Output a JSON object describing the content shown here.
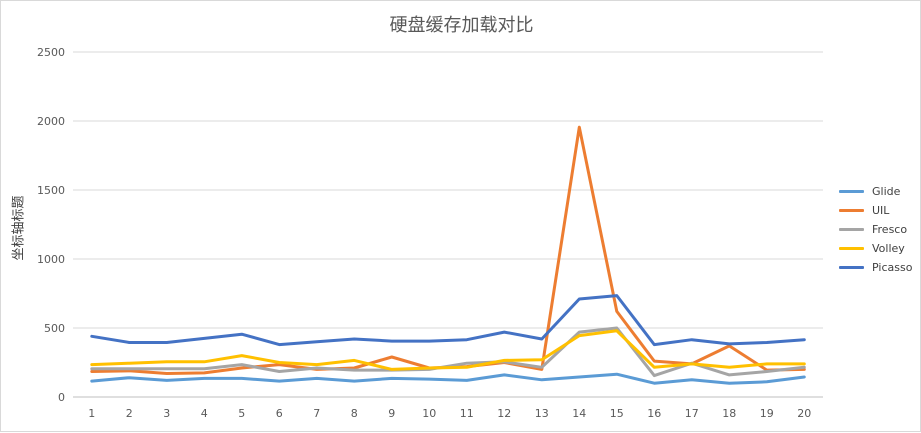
{
  "chart_data": {
    "type": "line",
    "title": "硬盘缓存加载对比",
    "ylabel": "坐标轴标题",
    "xlabel": "",
    "categories": [
      "1",
      "2",
      "3",
      "4",
      "5",
      "6",
      "7",
      "8",
      "9",
      "10",
      "11",
      "12",
      "13",
      "14",
      "15",
      "16",
      "17",
      "18",
      "19",
      "20"
    ],
    "ylim": [
      0,
      2500
    ],
    "yticks": [
      0,
      500,
      1000,
      1500,
      2000,
      2500
    ],
    "grid": true,
    "legend_position": "right",
    "series": [
      {
        "name": "Glide",
        "color": "#5b9bd5",
        "values": [
          115,
          140,
          120,
          135,
          135,
          115,
          135,
          115,
          135,
          130,
          120,
          160,
          125,
          145,
          165,
          100,
          125,
          100,
          110,
          145
        ]
      },
      {
        "name": "UIL",
        "color": "#ed7d31",
        "values": [
          185,
          190,
          170,
          175,
          210,
          235,
          200,
          210,
          290,
          210,
          220,
          250,
          200,
          1955,
          620,
          260,
          240,
          370,
          195,
          200
        ]
      },
      {
        "name": "Fresco",
        "color": "#a5a5a5",
        "values": [
          205,
          205,
          205,
          205,
          235,
          185,
          210,
          195,
          195,
          200,
          245,
          255,
          215,
          470,
          500,
          155,
          245,
          160,
          185,
          215
        ]
      },
      {
        "name": "Volley",
        "color": "#ffc000",
        "values": [
          235,
          245,
          255,
          255,
          300,
          250,
          235,
          265,
          200,
          210,
          215,
          265,
          270,
          445,
          480,
          215,
          240,
          215,
          240,
          240
        ]
      },
      {
        "name": "Picasso",
        "color": "#4472c4",
        "values": [
          440,
          395,
          395,
          425,
          455,
          380,
          400,
          420,
          405,
          405,
          415,
          470,
          420,
          710,
          735,
          380,
          415,
          385,
          395,
          415
        ]
      }
    ]
  }
}
